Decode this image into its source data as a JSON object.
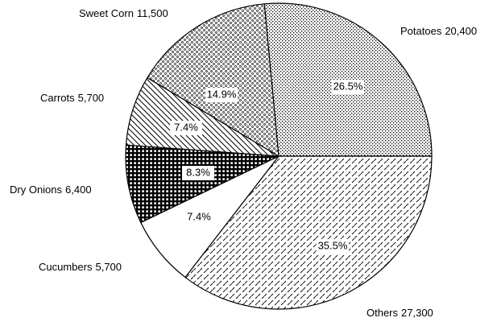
{
  "chart_data": {
    "type": "pie",
    "categories": [
      "Potatoes",
      "Others",
      "Cucumbers",
      "Dry Onions",
      "Carrots",
      "Sweet Corn"
    ],
    "values": [
      20400,
      27300,
      5700,
      6400,
      5700,
      11500
    ],
    "value_labels": [
      "20,400",
      "27,300",
      "5,700",
      "6,400",
      "5,700",
      "11,500"
    ],
    "percentages": [
      26.5,
      35.5,
      7.4,
      8.3,
      7.4,
      14.9
    ],
    "percentage_labels": [
      "26.5%",
      "35.5%",
      "7.4%",
      "8.3%",
      "7.4%",
      "14.9%"
    ]
  }
}
